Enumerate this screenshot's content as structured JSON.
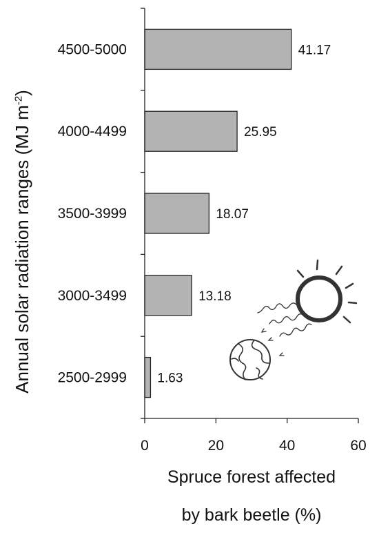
{
  "chart_data": {
    "type": "bar",
    "orientation": "horizontal",
    "categories": [
      "4500-5000",
      "4000-4499",
      "3500-3999",
      "3000-3499",
      "2500-2999"
    ],
    "values": [
      41.17,
      25.95,
      18.07,
      13.18,
      1.63
    ],
    "value_labels": [
      "41.17",
      "25.95",
      "18.07",
      "13.18",
      "1.63"
    ],
    "xlabel_line1": "Spruce forest affected",
    "xlabel_line2": "by bark beetle (%)",
    "ylabel_main": "Annual solar radiation ranges (MJ m",
    "ylabel_sup": "-2",
    "ylabel_end": ")",
    "xlim": [
      0,
      60
    ],
    "xticks": [
      0,
      20,
      40,
      60
    ],
    "xtick_labels": [
      "0",
      "20",
      "40",
      "60"
    ],
    "grid": false,
    "colors": {
      "bar_fill": "#b3b3b3",
      "bar_stroke": "#222222",
      "axis": "#222222"
    }
  }
}
